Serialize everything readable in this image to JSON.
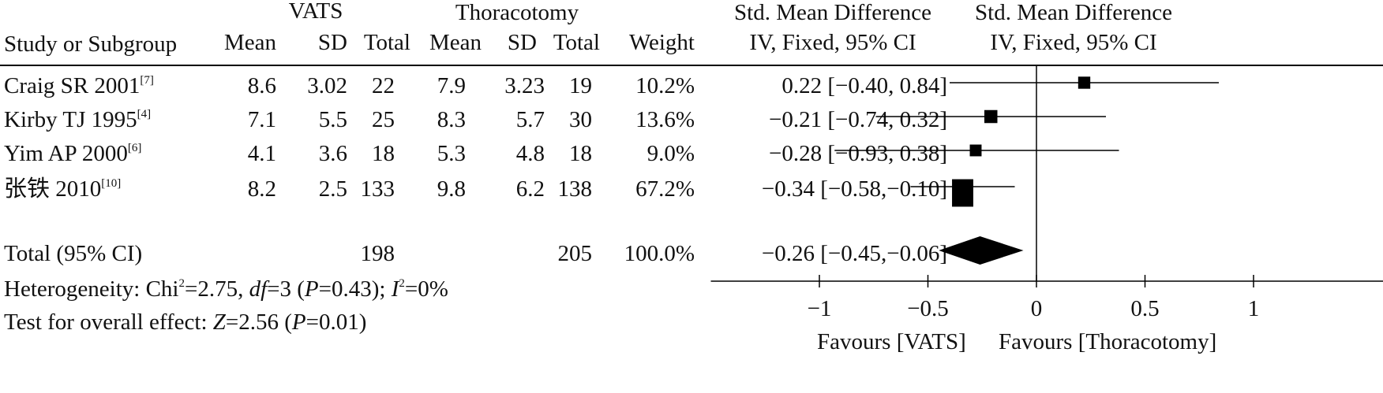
{
  "header": {
    "group1": "VATS",
    "group2": "Thoracotomy",
    "effect_title": "Std. Mean Difference",
    "effect_method": "IV, Fixed, 95% CI",
    "plot_title": "Std. Mean Difference",
    "plot_method": "IV, Fixed, 95% CI",
    "study_col": "Study or Subgroup",
    "mean": "Mean",
    "sd": "SD",
    "total": "Total",
    "weight": "Weight"
  },
  "studies": [
    {
      "name": "Craig SR 2001",
      "ref": "[7]",
      "m1": "8.6",
      "sd1": "3.02",
      "n1": "22",
      "m2": "7.9",
      "sd2": "3.23",
      "n2": "19",
      "weight": "10.2%",
      "ci_text": "0.22 [−0.40, 0.84]"
    },
    {
      "name": "Kirby TJ 1995",
      "ref": "[4]",
      "m1": "7.1",
      "sd1": "5.5",
      "n1": "25",
      "m2": "8.3",
      "sd2": "5.7",
      "n2": "30",
      "weight": "13.6%",
      "ci_text": "−0.21 [−0.74, 0.32]"
    },
    {
      "name": "Yim AP 2000",
      "ref": "[6]",
      "m1": "4.1",
      "sd1": "3.6",
      "n1": "18",
      "m2": "5.3",
      "sd2": "4.8",
      "n2": "18",
      "weight": "9.0%",
      "ci_text": "−0.28 [−0.93, 0.38]"
    },
    {
      "name": "张铁 2010",
      "ref": "[10]",
      "m1": "8.2",
      "sd1": "2.5",
      "n1": "133",
      "m2": "9.8",
      "sd2": "6.2",
      "n2": "138",
      "weight": "67.2%",
      "ci_text": "−0.34 [−0.58,−0.10]"
    }
  ],
  "total": {
    "label": "Total (95% CI)",
    "n1": "198",
    "n2": "205",
    "weight": "100.0%",
    "ci_text": "−0.26 [−0.45,−0.06]"
  },
  "heterogeneity": {
    "prefix": "Heterogeneity: Chi",
    "sup1": "2",
    "chi_val": "=2.75, ",
    "df_label": "df",
    "df_val": "=3 (",
    "p_label": "P",
    "p_val": "=0.43); ",
    "i_label": "I",
    "sup2": "2",
    "i_val": "=0%"
  },
  "overall": {
    "prefix": "Test for overall effect: ",
    "z_label": "Z",
    "z_val": "=2.56 (",
    "p_label": "P",
    "p_val": "=0.01)"
  },
  "favours": {
    "left": "Favours [VATS]",
    "right": "Favours [Thoracotomy]"
  },
  "chart_data": {
    "type": "forest",
    "xlim": [
      -1.5,
      1.7
    ],
    "ticks": [
      -1,
      -0.5,
      0,
      0.5,
      1
    ],
    "tick_labels": [
      "−1",
      "−0.5",
      "0",
      "0.5",
      "1"
    ],
    "studies": [
      {
        "name": "Craig SR 2001",
        "est": 0.22,
        "lo": -0.4,
        "hi": 0.84,
        "weight": 10.2
      },
      {
        "name": "Kirby TJ 1995",
        "est": -0.21,
        "lo": -0.74,
        "hi": 0.32,
        "weight": 13.6
      },
      {
        "name": "Yim AP 2000",
        "est": -0.28,
        "lo": -0.93,
        "hi": 0.38,
        "weight": 9.0
      },
      {
        "name": "张铁 2010",
        "est": -0.34,
        "lo": -0.58,
        "hi": -0.1,
        "weight": 67.2
      }
    ],
    "total": {
      "est": -0.26,
      "lo": -0.45,
      "hi": -0.06
    }
  }
}
